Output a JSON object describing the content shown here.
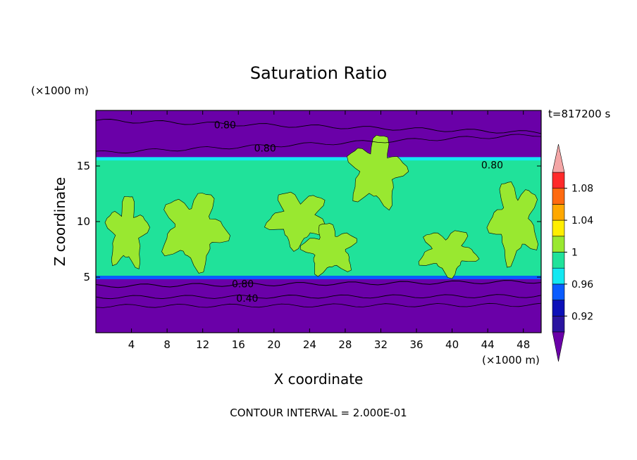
{
  "chart_data": {
    "type": "heatmap",
    "title": "Saturation Ratio",
    "xlabel": "X coordinate",
    "ylabel": "Z coordinate",
    "x_unit": "(×1000 m)",
    "y_unit": "(×1000 m)",
    "time_label": "t=817200 s",
    "footer": "CONTOUR INTERVAL = 2.000E-01",
    "xlim": [
      0,
      50
    ],
    "ylim": [
      0,
      20
    ],
    "x_ticks": [
      4,
      8,
      12,
      16,
      20,
      24,
      28,
      32,
      36,
      40,
      44,
      48
    ],
    "y_ticks": [
      5,
      10,
      15
    ],
    "colorbar": {
      "levels": [
        0.9,
        0.92,
        0.94,
        0.96,
        0.98,
        1.0,
        1.02,
        1.04,
        1.06,
        1.08,
        1.1
      ],
      "labels": [
        "0.92",
        "0.96",
        "1",
        "1.04",
        "1.08"
      ],
      "colors": [
        "#6a00a8",
        "#2a14a0",
        "#0c10b8",
        "#0a5cff",
        "#13e8f2",
        "#20e29a",
        "#99e830",
        "#ffee00",
        "#ffa800",
        "#ff6a10",
        "#ff2a2a",
        "#f4a6a6"
      ]
    },
    "contour_labels": [
      {
        "text": "0.80",
        "x": 14.5,
        "y": 18.7
      },
      {
        "text": "0.80",
        "x": 19.0,
        "y": 16.6
      },
      {
        "text": "0.80",
        "x": 44.5,
        "y": 15.1
      },
      {
        "text": "0.80",
        "x": 16.5,
        "y": 4.4
      },
      {
        "text": "0.40",
        "x": 17.0,
        "y": 3.1
      }
    ],
    "regions": {
      "top_dry_layer_z": [
        15,
        20
      ],
      "moist_layer_z": [
        5,
        16
      ],
      "bottom_dry_layer_z": [
        0,
        5
      ],
      "saturated_patches": [
        {
          "x": [
            1,
            6
          ],
          "z": [
            5.5,
            12.5
          ]
        },
        {
          "x": [
            7,
            15
          ],
          "z": [
            5.5,
            13
          ]
        },
        {
          "x": [
            19,
            26.5
          ],
          "z": [
            7.5,
            13
          ]
        },
        {
          "x": [
            23,
            29.5
          ],
          "z": [
            5,
            10
          ]
        },
        {
          "x": [
            28,
            35
          ],
          "z": [
            11,
            18
          ]
        },
        {
          "x": [
            36,
            43
          ],
          "z": [
            5,
            9.5
          ]
        },
        {
          "x": [
            44,
            50
          ],
          "z": [
            6,
            14
          ]
        }
      ]
    }
  }
}
